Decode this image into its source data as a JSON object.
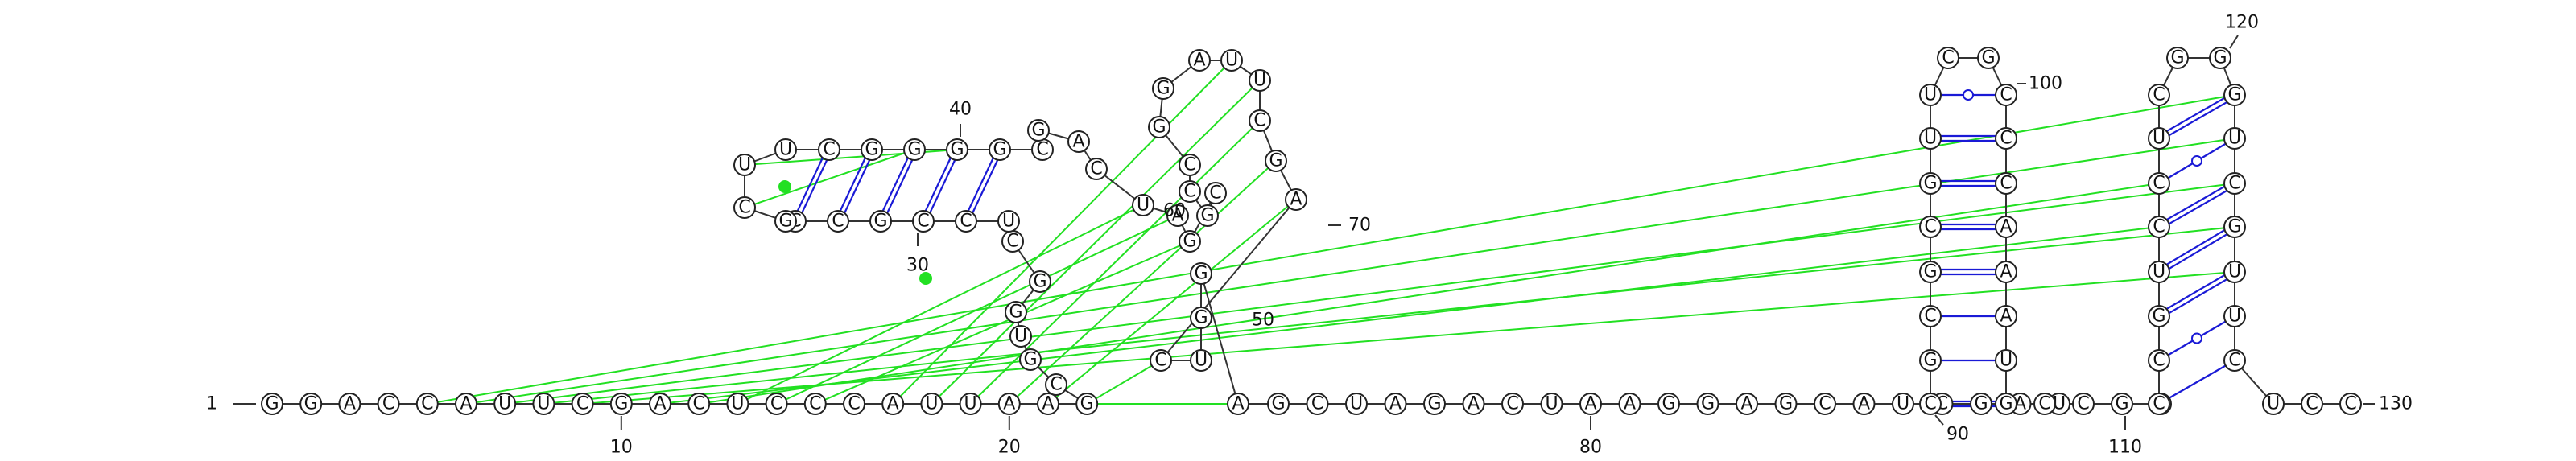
{
  "diagram": {
    "type": "rna-secondary-structure",
    "sequence_length": 130,
    "colors": {
      "canonical_pair": "#1a1ad6",
      "noncanonical_pair": "#1a1ad6",
      "pseudoknot_link": "#22e022",
      "backbone": "#333333",
      "nucleotide_fill": "#ffffff",
      "nucleotide_stroke": "#222222"
    },
    "position_labels": [
      "1",
      "10",
      "20",
      "30",
      "40",
      "50",
      "60",
      "70",
      "80",
      "90",
      "100",
      "110",
      "120",
      "130"
    ],
    "nucleotides": [
      "G",
      "G",
      "A",
      "C",
      "C",
      "A",
      "U",
      "U",
      "C",
      "G",
      "A",
      "C",
      "U",
      "C",
      "C",
      "C",
      "A",
      "U",
      "U",
      "A",
      "A",
      "G",
      "C",
      "G",
      "U",
      "G",
      "G",
      "C",
      "U",
      "C",
      "C",
      "G",
      "C",
      "C",
      "G",
      "C",
      "U",
      "U",
      "C",
      "G",
      "G",
      "G",
      "G",
      "C",
      "G",
      "A",
      "C",
      "U",
      "A",
      "G",
      "C",
      "G",
      "C",
      "C",
      "G",
      "G",
      "A",
      "U",
      "U",
      "C",
      "G",
      "A",
      "C",
      "U",
      "G",
      "G",
      "A",
      "G",
      "C",
      "U",
      "A",
      "G",
      "A",
      "C",
      "U",
      "A",
      "A",
      "G",
      "G",
      "A",
      "G",
      "C",
      "A",
      "U",
      "C",
      "G",
      "A",
      "U",
      "C",
      "G",
      "C",
      "G",
      "C",
      "G",
      "U",
      "U",
      "C",
      "G",
      "C",
      "C",
      "C",
      "A",
      "A",
      "A",
      "U",
      "G",
      "C",
      "C",
      "G",
      "G",
      "C",
      "C",
      "G",
      "U",
      "C",
      "C",
      "U",
      "C",
      "G",
      "G",
      "G",
      "U",
      "C",
      "G",
      "U",
      "U",
      "C",
      "U",
      "C",
      "C"
    ]
  }
}
